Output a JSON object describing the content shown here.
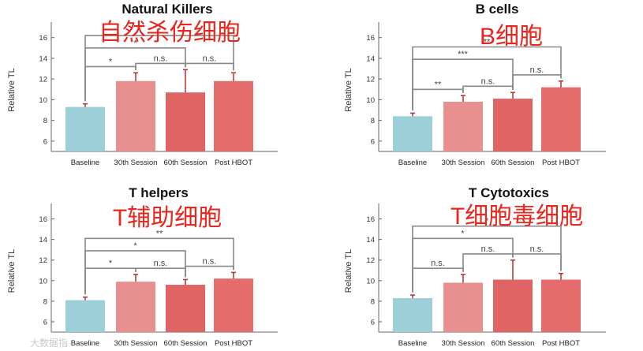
{
  "colors": {
    "baseline": "#9dcfd8",
    "session30": "#e89090",
    "session60": "#e06464",
    "post": "#e46c6c",
    "error": "#b03030",
    "axis": "#666666",
    "bracket": "#888888"
  },
  "watermark": "大数据指",
  "chart_data": [
    {
      "type": "bar",
      "title": "Natural Killers",
      "overlay_label": "自然杀伤细胞",
      "ylabel": "Relative TL",
      "ylim": [
        5,
        17.5
      ],
      "yticks": [
        6,
        8,
        10,
        12,
        14,
        16
      ],
      "categories": [
        "Baseline",
        "30th Session",
        "60th Session",
        "Post HBOT"
      ],
      "values": [
        9.3,
        11.8,
        10.7,
        11.8
      ],
      "errors": [
        0.3,
        0.8,
        2.2,
        0.8
      ],
      "significance": [
        {
          "from": 0,
          "to": 1,
          "level": 1,
          "label": "*"
        },
        {
          "from": 1,
          "to": 2,
          "level": 1,
          "label": "n.s."
        },
        {
          "from": 2,
          "to": 3,
          "level": 1,
          "label": "n.s."
        },
        {
          "from": 0,
          "to": 2,
          "level": 2,
          "label": "*"
        },
        {
          "from": 0,
          "to": 3,
          "level": 3,
          "label": "*"
        }
      ]
    },
    {
      "type": "bar",
      "title": "B cells",
      "overlay_label": "B细胞",
      "ylabel": "Relative TL",
      "ylim": [
        5,
        17.5
      ],
      "yticks": [
        6,
        8,
        10,
        12,
        14,
        16
      ],
      "categories": [
        "Baseline",
        "30th Session",
        "60th Session",
        "Post HBOT"
      ],
      "values": [
        8.4,
        9.8,
        10.1,
        11.2
      ],
      "errors": [
        0.3,
        0.6,
        0.6,
        0.6
      ],
      "significance": [
        {
          "from": 0,
          "to": 1,
          "level": 1,
          "label": "**"
        },
        {
          "from": 1,
          "to": 2,
          "level": 1,
          "label": "n.s."
        },
        {
          "from": 2,
          "to": 3,
          "level": 1,
          "label": "n.s."
        },
        {
          "from": 0,
          "to": 2,
          "level": 2,
          "label": "***"
        },
        {
          "from": 0,
          "to": 3,
          "level": 3,
          "label": "**"
        }
      ]
    },
    {
      "type": "bar",
      "title": "T helpers",
      "overlay_label": "T辅助细胞",
      "ylabel": "Relative TL",
      "ylim": [
        5,
        17.5
      ],
      "yticks": [
        6,
        8,
        10,
        12,
        14,
        16
      ],
      "categories": [
        "Baseline",
        "30th Session",
        "60th Session",
        "Post HBOT"
      ],
      "values": [
        8.1,
        9.9,
        9.6,
        10.2
      ],
      "errors": [
        0.3,
        0.7,
        0.5,
        0.6
      ],
      "significance": [
        {
          "from": 0,
          "to": 1,
          "level": 1,
          "label": "*"
        },
        {
          "from": 1,
          "to": 2,
          "level": 1,
          "label": "n.s."
        },
        {
          "from": 2,
          "to": 3,
          "level": 1,
          "label": "n.s."
        },
        {
          "from": 0,
          "to": 2,
          "level": 2,
          "label": "*"
        },
        {
          "from": 0,
          "to": 3,
          "level": 3,
          "label": "**"
        }
      ]
    },
    {
      "type": "bar",
      "title": "T Cytotoxics",
      "overlay_label": "T细胞毒细胞",
      "ylabel": "Relative TL",
      "ylim": [
        5,
        17.5
      ],
      "yticks": [
        6,
        8,
        10,
        12,
        14,
        16
      ],
      "categories": [
        "Baseline",
        "30th Session",
        "60th Session",
        "Post HBOT"
      ],
      "values": [
        8.3,
        9.8,
        10.1,
        10.1
      ],
      "errors": [
        0.3,
        0.8,
        1.9,
        0.6
      ],
      "significance": [
        {
          "from": 0,
          "to": 1,
          "level": 1,
          "label": "n.s."
        },
        {
          "from": 1,
          "to": 2,
          "level": 1,
          "label": "n.s."
        },
        {
          "from": 2,
          "to": 3,
          "level": 1,
          "label": "n.s."
        },
        {
          "from": 0,
          "to": 2,
          "level": 2,
          "label": "*"
        },
        {
          "from": 0,
          "to": 3,
          "level": 3,
          "label": "*"
        }
      ]
    }
  ]
}
